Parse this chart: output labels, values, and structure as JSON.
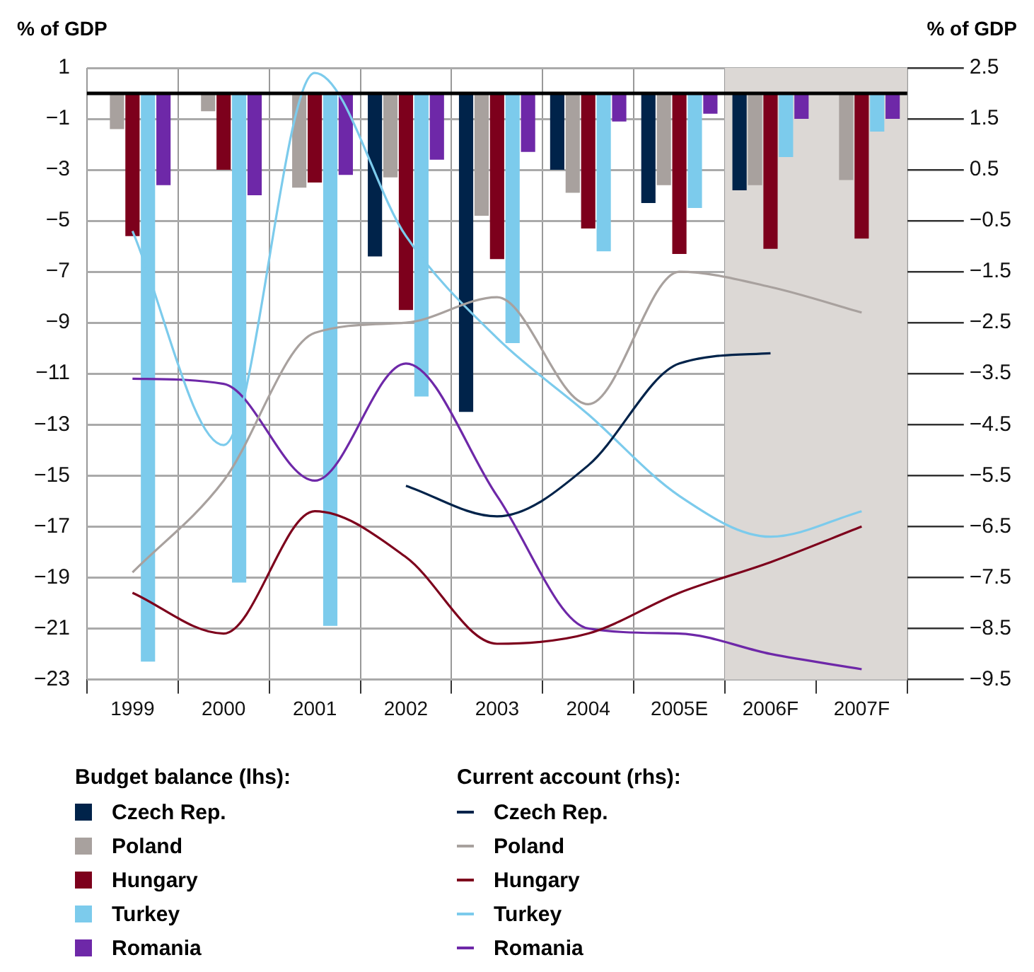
{
  "chart_data": {
    "type": "bar",
    "ylabel": "% of GDP",
    "y2label": "% of GDP",
    "legend_title": "Budget balance (lhs):",
    "annotations": [
      "Current account (rhs):"
    ],
    "categories": [
      "1999",
      "2000",
      "2001",
      "2002",
      "2003",
      "2004",
      "2005E",
      "2006F",
      "2007F"
    ],
    "series": [
      {
        "name": "Czech Rep.",
        "color": "#00234a",
        "values": [
          null,
          null,
          null,
          -6.4,
          -12.5,
          -3.0,
          -4.3,
          -3.8,
          null
        ]
      },
      {
        "name": "Poland",
        "color": "#a8a19e",
        "values": [
          -1.4,
          -0.7,
          -3.7,
          -3.3,
          -4.8,
          -3.9,
          -3.6,
          -3.6,
          -3.4
        ]
      },
      {
        "name": "Hungary",
        "color": "#7d001c",
        "values": [
          -5.6,
          -3.0,
          -3.5,
          -8.5,
          -6.5,
          -5.3,
          -6.3,
          -6.1,
          -5.7
        ]
      },
      {
        "name": "Turkey",
        "color": "#7ccbec",
        "values": [
          -22.3,
          -19.2,
          -20.9,
          -11.9,
          -9.8,
          -6.2,
          -4.5,
          -2.5,
          -1.5
        ]
      },
      {
        "name": "Romania",
        "color": "#6e28a8",
        "values": [
          -3.6,
          -4.0,
          -3.2,
          -2.6,
          -2.3,
          -1.1,
          -0.8,
          -1.0,
          -1.0
        ]
      },
      {
        "name": "Czech Rep.",
        "type": "line",
        "axis": "y2",
        "color": "#00234a",
        "values": [
          null,
          null,
          null,
          -5.7,
          -6.3,
          -5.3,
          -3.3,
          -3.1,
          null
        ]
      },
      {
        "name": "Poland",
        "type": "line",
        "axis": "y2",
        "color": "#a8a19e",
        "values": [
          -7.4,
          -5.6,
          -2.7,
          -2.5,
          -2.0,
          -4.1,
          -1.5,
          -1.8,
          -2.3
        ]
      },
      {
        "name": "Hungary",
        "type": "line",
        "axis": "y2",
        "color": "#7d001c",
        "values": [
          -7.8,
          -8.6,
          -6.2,
          -7.1,
          -8.8,
          -8.6,
          -7.8,
          -7.2,
          -6.5
        ]
      },
      {
        "name": "Turkey",
        "type": "line",
        "axis": "y2",
        "color": "#7ccbec",
        "values": [
          -0.7,
          -4.9,
          2.4,
          -0.8,
          -2.8,
          -4.3,
          -5.9,
          -6.7,
          -6.2
        ]
      },
      {
        "name": "Romania",
        "type": "line",
        "axis": "y2",
        "color": "#6e28a8",
        "values": [
          -3.6,
          -3.7,
          -5.6,
          -3.3,
          -5.9,
          -8.5,
          -8.6,
          -9.0,
          -9.3
        ]
      }
    ],
    "ylim": [
      -23,
      1
    ],
    "yticks": [
      1,
      -1,
      -3,
      -5,
      -7,
      -9,
      -11,
      -13,
      -15,
      -17,
      -19,
      -21,
      -23
    ],
    "y2lim": [
      -9.5,
      2.5
    ],
    "y2ticks": [
      2.5,
      1.5,
      0.5,
      -0.5,
      -1.5,
      -2.5,
      -3.5,
      -4.5,
      -5.5,
      -6.5,
      -7.5,
      -8.5,
      -9.5
    ],
    "ref_lines": [
      {
        "axis": "y",
        "value": 0,
        "color": "#000000"
      }
    ],
    "bands": [
      {
        "axis": "x",
        "from": "2006F",
        "to": "2007F",
        "color": "#dcd8d5"
      }
    ],
    "grid": true,
    "legend": "bottom",
    "marker": "none",
    "line_style": "solid"
  }
}
